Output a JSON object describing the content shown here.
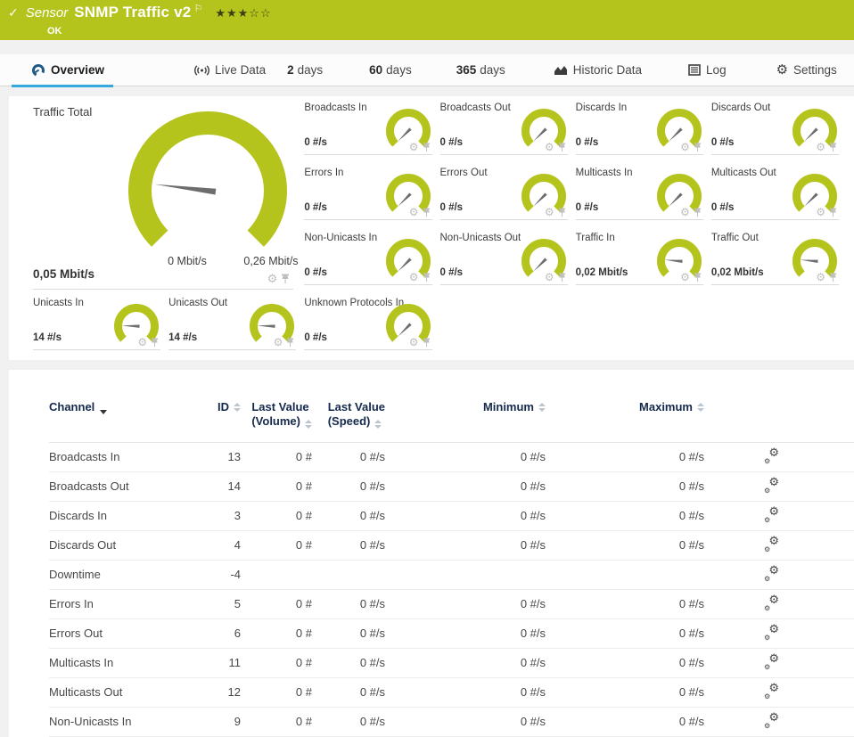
{
  "header": {
    "type_label": "Sensor",
    "title": "SNMP Traffic v2",
    "status": "OK",
    "rating": {
      "filled": 3,
      "total": 5
    }
  },
  "tabs": [
    {
      "id": "overview",
      "prefix": "",
      "label": "Overview",
      "active": true
    },
    {
      "id": "live-data",
      "prefix": "",
      "label": "Live Data",
      "active": false
    },
    {
      "id": "2-days",
      "prefix": "2",
      "label": "days",
      "active": false
    },
    {
      "id": "60-days",
      "prefix": "60",
      "label": "days",
      "active": false
    },
    {
      "id": "365-days",
      "prefix": "365",
      "label": "days",
      "active": false
    },
    {
      "id": "historic-data",
      "prefix": "",
      "label": "Historic Data",
      "active": false
    },
    {
      "id": "log",
      "prefix": "",
      "label": "Log",
      "active": false
    },
    {
      "id": "settings",
      "prefix": "",
      "label": "Settings",
      "active": false
    }
  ],
  "overview": {
    "traffic_total": {
      "title": "Traffic Total",
      "value": "0,05 Mbit/s",
      "scale_min": "0 Mbit/s",
      "scale_max": "0,26 Mbit/s",
      "needle_deg": -83
    },
    "gauges": [
      {
        "title": "Broadcasts In",
        "value": "0 #/s",
        "needle_deg": -135
      },
      {
        "title": "Broadcasts Out",
        "value": "0 #/s",
        "needle_deg": -135
      },
      {
        "title": "Discards In",
        "value": "0 #/s",
        "needle_deg": -135
      },
      {
        "title": "Discards Out",
        "value": "0 #/s",
        "needle_deg": -135
      },
      {
        "title": "Errors In",
        "value": "0 #/s",
        "needle_deg": -135
      },
      {
        "title": "Errors Out",
        "value": "0 #/s",
        "needle_deg": -135
      },
      {
        "title": "Multicasts In",
        "value": "0 #/s",
        "needle_deg": -135
      },
      {
        "title": "Multicasts Out",
        "value": "0 #/s",
        "needle_deg": -135
      },
      {
        "title": "Non-Unicasts In",
        "value": "0 #/s",
        "needle_deg": -135
      },
      {
        "title": "Non-Unicasts Out",
        "value": "0 #/s",
        "needle_deg": -135
      },
      {
        "title": "Traffic In",
        "value": "0,02 Mbit/s",
        "needle_deg": -85
      },
      {
        "title": "Traffic Out",
        "value": "0,02 Mbit/s",
        "needle_deg": -85
      },
      {
        "title": "Unicasts In",
        "value": "14 #/s",
        "needle_deg": -88
      },
      {
        "title": "Unicasts Out",
        "value": "14 #/s",
        "needle_deg": -88
      },
      {
        "title": "Unknown Protocols In",
        "value": "0 #/s",
        "needle_deg": -135
      }
    ]
  },
  "table": {
    "columns": [
      {
        "key": "channel",
        "label": "Channel",
        "sub": "",
        "sorted": true
      },
      {
        "key": "id",
        "label": "ID",
        "sub": "",
        "sorted": false
      },
      {
        "key": "volume",
        "label": "Last Value",
        "sub": "(Volume)",
        "sorted": false
      },
      {
        "key": "speed",
        "label": "Last Value",
        "sub": "(Speed)",
        "sorted": false
      },
      {
        "key": "min",
        "label": "Minimum",
        "sub": "",
        "sorted": false
      },
      {
        "key": "max",
        "label": "Maximum",
        "sub": "",
        "sorted": false
      }
    ],
    "rows": [
      {
        "channel": "Broadcasts In",
        "id": "13",
        "volume": "0 #",
        "speed": "0 #/s",
        "min": "0 #/s",
        "max": "0 #/s"
      },
      {
        "channel": "Broadcasts Out",
        "id": "14",
        "volume": "0 #",
        "speed": "0 #/s",
        "min": "0 #/s",
        "max": "0 #/s"
      },
      {
        "channel": "Discards In",
        "id": "3",
        "volume": "0 #",
        "speed": "0 #/s",
        "min": "0 #/s",
        "max": "0 #/s"
      },
      {
        "channel": "Discards Out",
        "id": "4",
        "volume": "0 #",
        "speed": "0 #/s",
        "min": "0 #/s",
        "max": "0 #/s"
      },
      {
        "channel": "Downtime",
        "id": "-4",
        "volume": "",
        "speed": "",
        "min": "",
        "max": ""
      },
      {
        "channel": "Errors In",
        "id": "5",
        "volume": "0 #",
        "speed": "0 #/s",
        "min": "0 #/s",
        "max": "0 #/s"
      },
      {
        "channel": "Errors Out",
        "id": "6",
        "volume": "0 #",
        "speed": "0 #/s",
        "min": "0 #/s",
        "max": "0 #/s"
      },
      {
        "channel": "Multicasts In",
        "id": "11",
        "volume": "0 #",
        "speed": "0 #/s",
        "min": "0 #/s",
        "max": "0 #/s"
      },
      {
        "channel": "Multicasts Out",
        "id": "12",
        "volume": "0 #",
        "speed": "0 #/s",
        "min": "0 #/s",
        "max": "0 #/s"
      },
      {
        "channel": "Non-Unicasts In",
        "id": "9",
        "volume": "0 #",
        "speed": "0 #/s",
        "min": "0 #/s",
        "max": "0 #/s"
      }
    ]
  },
  "colors": {
    "brand_green": "#b4c41c",
    "accent_blue": "#35a9dd",
    "table_header_navy": "#15294d",
    "needle_gray": "#6d6d6d"
  }
}
